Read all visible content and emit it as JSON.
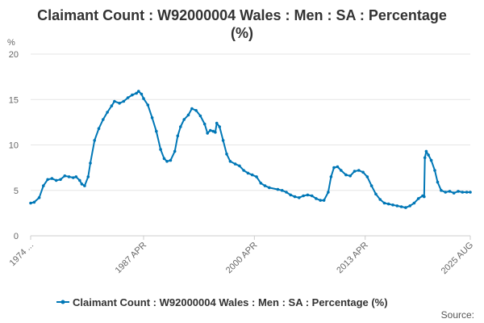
{
  "chart_data": {
    "type": "line",
    "title_lines": [
      "Claimant Count : W92000004 Wales : Men : SA : Percentage",
      "(%)"
    ],
    "ylabel": "%",
    "ylim": [
      0,
      20
    ],
    "yticks": [
      "0",
      "5",
      "10",
      "15",
      "20"
    ],
    "xticks": [
      "1974 ...",
      "1987 APR",
      "2000 APR",
      "2013 APR",
      "2025 AUG"
    ],
    "grid": "horizontal",
    "legend_position": "bottom",
    "series_color": "#0077b6",
    "source_label": "Source:",
    "series": [
      {
        "name": "Claimant Count : W92000004 Wales : Men : SA : Percentage (%)",
        "points": [
          [
            "1974-01",
            3.6
          ],
          [
            "1974-06",
            3.7
          ],
          [
            "1975-01",
            4.2
          ],
          [
            "1975-07",
            5.5
          ],
          [
            "1976-01",
            6.2
          ],
          [
            "1976-07",
            6.3
          ],
          [
            "1977-01",
            6.1
          ],
          [
            "1977-07",
            6.2
          ],
          [
            "1978-01",
            6.6
          ],
          [
            "1978-07",
            6.5
          ],
          [
            "1979-01",
            6.4
          ],
          [
            "1979-05",
            6.5
          ],
          [
            "1979-10",
            6.1
          ],
          [
            "1980-01",
            5.7
          ],
          [
            "1980-05",
            5.5
          ],
          [
            "1980-10",
            6.5
          ],
          [
            "1981-01",
            8.0
          ],
          [
            "1981-07",
            10.5
          ],
          [
            "1982-01",
            11.8
          ],
          [
            "1982-07",
            12.8
          ],
          [
            "1983-01",
            13.6
          ],
          [
            "1983-07",
            14.3
          ],
          [
            "1983-11",
            14.8
          ],
          [
            "1984-06",
            14.6
          ],
          [
            "1984-12",
            14.8
          ],
          [
            "1985-06",
            15.2
          ],
          [
            "1985-12",
            15.5
          ],
          [
            "1986-06",
            15.7
          ],
          [
            "1986-09",
            15.9
          ],
          [
            "1987-01",
            15.6
          ],
          [
            "1987-04",
            15.1
          ],
          [
            "1987-10",
            14.4
          ],
          [
            "1988-04",
            13.0
          ],
          [
            "1988-10",
            11.5
          ],
          [
            "1989-04",
            9.5
          ],
          [
            "1989-09",
            8.5
          ],
          [
            "1990-01",
            8.2
          ],
          [
            "1990-06",
            8.3
          ],
          [
            "1990-12",
            9.3
          ],
          [
            "1991-04",
            11.0
          ],
          [
            "1991-08",
            12.0
          ],
          [
            "1992-01",
            12.8
          ],
          [
            "1992-07",
            13.3
          ],
          [
            "1992-12",
            14.0
          ],
          [
            "1993-06",
            13.8
          ],
          [
            "1993-12",
            13.2
          ],
          [
            "1994-06",
            12.3
          ],
          [
            "1994-10",
            11.3
          ],
          [
            "1995-02",
            11.6
          ],
          [
            "1995-06",
            11.5
          ],
          [
            "1995-09",
            11.4
          ],
          [
            "1995-11",
            12.4
          ],
          [
            "1996-03",
            12.0
          ],
          [
            "1996-08",
            10.5
          ],
          [
            "1997-01",
            9.0
          ],
          [
            "1997-06",
            8.2
          ],
          [
            "1998-01",
            7.9
          ],
          [
            "1998-07",
            7.7
          ],
          [
            "1999-01",
            7.2
          ],
          [
            "1999-07",
            6.9
          ],
          [
            "2000-01",
            6.7
          ],
          [
            "2000-07",
            6.5
          ],
          [
            "2001-01",
            5.8
          ],
          [
            "2001-07",
            5.5
          ],
          [
            "2002-01",
            5.3
          ],
          [
            "2003-01",
            5.1
          ],
          [
            "2003-07",
            5.0
          ],
          [
            "2004-01",
            4.8
          ],
          [
            "2004-07",
            4.5
          ],
          [
            "2005-01",
            4.3
          ],
          [
            "2005-07",
            4.2
          ],
          [
            "2006-01",
            4.4
          ],
          [
            "2006-07",
            4.5
          ],
          [
            "2007-01",
            4.4
          ],
          [
            "2007-07",
            4.1
          ],
          [
            "2008-01",
            3.9
          ],
          [
            "2008-06",
            3.9
          ],
          [
            "2008-12",
            4.8
          ],
          [
            "2009-04",
            6.5
          ],
          [
            "2009-08",
            7.5
          ],
          [
            "2010-01",
            7.6
          ],
          [
            "2010-06",
            7.2
          ],
          [
            "2011-01",
            6.7
          ],
          [
            "2011-07",
            6.6
          ],
          [
            "2012-01",
            7.1
          ],
          [
            "2012-07",
            7.2
          ],
          [
            "2013-01",
            7.0
          ],
          [
            "2013-07",
            6.5
          ],
          [
            "2014-01",
            5.5
          ],
          [
            "2014-07",
            4.6
          ],
          [
            "2015-01",
            4.0
          ],
          [
            "2015-07",
            3.6
          ],
          [
            "2016-01",
            3.5
          ],
          [
            "2016-07",
            3.4
          ],
          [
            "2017-01",
            3.3
          ],
          [
            "2017-07",
            3.2
          ],
          [
            "2018-01",
            3.1
          ],
          [
            "2018-07",
            3.3
          ],
          [
            "2019-01",
            3.6
          ],
          [
            "2019-07",
            4.1
          ],
          [
            "2020-01",
            4.4
          ],
          [
            "2020-03",
            4.3
          ],
          [
            "2020-04",
            8.6
          ],
          [
            "2020-06",
            9.3
          ],
          [
            "2020-09",
            8.9
          ],
          [
            "2021-01",
            8.3
          ],
          [
            "2021-06",
            7.2
          ],
          [
            "2021-10",
            5.9
          ],
          [
            "2022-03",
            5.0
          ],
          [
            "2022-09",
            4.8
          ],
          [
            "2023-03",
            4.9
          ],
          [
            "2023-09",
            4.7
          ],
          [
            "2024-03",
            4.9
          ],
          [
            "2024-09",
            4.8
          ],
          [
            "2025-03",
            4.8
          ],
          [
            "2025-08",
            4.8
          ]
        ]
      }
    ]
  }
}
